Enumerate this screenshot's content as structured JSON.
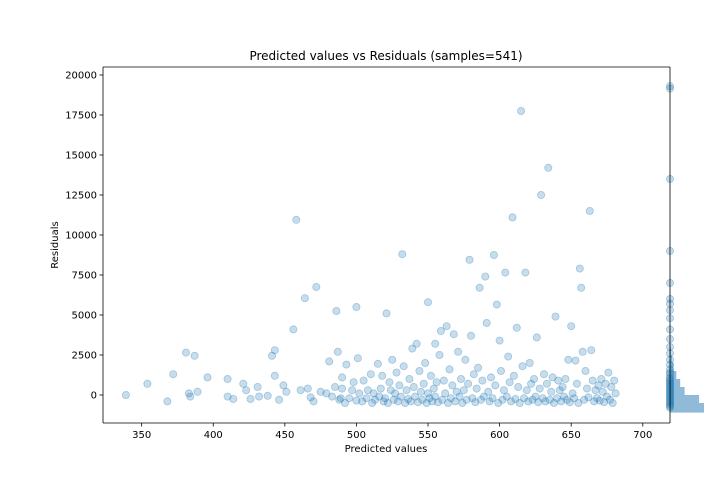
{
  "chart_data": {
    "type": "scatter",
    "title": "Predicted values vs Residuals (samples=541)",
    "xlabel": "Predicted values",
    "ylabel": "Residuals",
    "xlim": [
      323,
      719
    ],
    "ylim": [
      -1750,
      20500
    ],
    "x_ticks": [
      350,
      400,
      450,
      500,
      550,
      600,
      650,
      700
    ],
    "y_ticks": [
      0,
      2500,
      5000,
      7500,
      10000,
      12500,
      15000,
      17500,
      20000
    ],
    "point_color": "#1f77b4",
    "point_alpha": 0.25,
    "grid": false,
    "marginal_histogram": {
      "orientation": "horizontal",
      "side": "right",
      "color": "#1f77b4",
      "bins": [
        {
          "y0": -1100,
          "y1": -500,
          "count": 70
        },
        {
          "y0": -500,
          "y1": 0,
          "count": 60
        },
        {
          "y0": 0,
          "y1": 500,
          "count": 30
        },
        {
          "y0": 500,
          "y1": 1000,
          "count": 21
        },
        {
          "y0": 1000,
          "y1": 1500,
          "count": 13
        },
        {
          "y0": 1500,
          "y1": 2000,
          "count": 7
        },
        {
          "y0": 2000,
          "y1": 2500,
          "count": 4
        },
        {
          "y0": 2500,
          "y1": 3000,
          "count": 2
        }
      ]
    },
    "series": [
      {
        "points": [
          [
            339,
            0
          ],
          [
            354,
            700
          ],
          [
            368,
            -400
          ],
          [
            372,
            1300
          ],
          [
            381,
            2650
          ],
          [
            383,
            100
          ],
          [
            384,
            -100
          ],
          [
            387,
            2450
          ],
          [
            389,
            200
          ],
          [
            396,
            1100
          ],
          [
            410,
            1000
          ],
          [
            410,
            -100
          ],
          [
            414,
            -250
          ],
          [
            421,
            700
          ],
          [
            423,
            300
          ],
          [
            426,
            -250
          ],
          [
            431,
            500
          ],
          [
            432,
            -100
          ],
          [
            438,
            -50
          ],
          [
            441,
            2450
          ],
          [
            443,
            2800
          ],
          [
            443,
            1200
          ],
          [
            446,
            -300
          ],
          [
            449,
            600
          ],
          [
            451,
            200
          ],
          [
            456,
            4100
          ],
          [
            458,
            10950
          ],
          [
            461,
            300
          ],
          [
            464,
            6050
          ],
          [
            466,
            400
          ],
          [
            468,
            -150
          ],
          [
            470,
            -400
          ],
          [
            472,
            6750
          ],
          [
            475,
            200
          ],
          [
            479,
            100
          ],
          [
            481,
            2100
          ],
          [
            483,
            -100
          ],
          [
            485,
            500
          ],
          [
            486,
            5250
          ],
          [
            487,
            2700
          ],
          [
            488,
            -300
          ],
          [
            489,
            -200
          ],
          [
            490,
            1100
          ],
          [
            490,
            400
          ],
          [
            492,
            -500
          ],
          [
            493,
            1900
          ],
          [
            495,
            -200
          ],
          [
            497,
            300
          ],
          [
            498,
            800
          ],
          [
            500,
            5500
          ],
          [
            500,
            -350
          ],
          [
            501,
            2300
          ],
          [
            502,
            100
          ],
          [
            504,
            -400
          ],
          [
            505,
            900
          ],
          [
            507,
            -200
          ],
          [
            508,
            300
          ],
          [
            510,
            1300
          ],
          [
            511,
            -500
          ],
          [
            512,
            100
          ],
          [
            513,
            -300
          ],
          [
            515,
            1950
          ],
          [
            516,
            -100
          ],
          [
            517,
            400
          ],
          [
            518,
            1200
          ],
          [
            519,
            -400
          ],
          [
            520,
            -200
          ],
          [
            521,
            5100
          ],
          [
            522,
            -500
          ],
          [
            523,
            800
          ],
          [
            524,
            300
          ],
          [
            525,
            2200
          ],
          [
            526,
            -300
          ],
          [
            527,
            100
          ],
          [
            528,
            1400
          ],
          [
            529,
            -400
          ],
          [
            530,
            600
          ],
          [
            531,
            -100
          ],
          [
            532,
            8800
          ],
          [
            533,
            1800
          ],
          [
            534,
            -500
          ],
          [
            535,
            300
          ],
          [
            536,
            -250
          ],
          [
            537,
            1000
          ],
          [
            538,
            -400
          ],
          [
            539,
            2900
          ],
          [
            540,
            500
          ],
          [
            541,
            -100
          ],
          [
            542,
            3200
          ],
          [
            543,
            -450
          ],
          [
            544,
            1500
          ],
          [
            545,
            200
          ],
          [
            546,
            -300
          ],
          [
            547,
            700
          ],
          [
            548,
            2000
          ],
          [
            549,
            -500
          ],
          [
            550,
            5800
          ],
          [
            550,
            100
          ],
          [
            551,
            -200
          ],
          [
            552,
            1200
          ],
          [
            553,
            -400
          ],
          [
            554,
            400
          ],
          [
            555,
            3200
          ],
          [
            555,
            -100
          ],
          [
            556,
            800
          ],
          [
            557,
            -450
          ],
          [
            558,
            2500
          ],
          [
            559,
            4000
          ],
          [
            560,
            -300
          ],
          [
            561,
            900
          ],
          [
            562,
            100
          ],
          [
            563,
            4300
          ],
          [
            564,
            -500
          ],
          [
            565,
            1600
          ],
          [
            566,
            -200
          ],
          [
            567,
            600
          ],
          [
            568,
            3800
          ],
          [
            569,
            -400
          ],
          [
            570,
            200
          ],
          [
            571,
            2700
          ],
          [
            572,
            -100
          ],
          [
            573,
            1000
          ],
          [
            574,
            -500
          ],
          [
            575,
            300
          ],
          [
            576,
            2200
          ],
          [
            577,
            -300
          ],
          [
            578,
            700
          ],
          [
            579,
            8450
          ],
          [
            580,
            3700
          ],
          [
            581,
            -200
          ],
          [
            582,
            1300
          ],
          [
            583,
            -450
          ],
          [
            584,
            400
          ],
          [
            585,
            1700
          ],
          [
            586,
            6700
          ],
          [
            587,
            -300
          ],
          [
            588,
            900
          ],
          [
            589,
            -100
          ],
          [
            590,
            7400
          ],
          [
            591,
            4500
          ],
          [
            592,
            200
          ],
          [
            593,
            -400
          ],
          [
            594,
            1100
          ],
          [
            595,
            -200
          ],
          [
            596,
            8750
          ],
          [
            597,
            600
          ],
          [
            598,
            5650
          ],
          [
            599,
            -500
          ],
          [
            600,
            3400
          ],
          [
            601,
            1500
          ],
          [
            602,
            -300
          ],
          [
            603,
            300
          ],
          [
            604,
            7650
          ],
          [
            605,
            -100
          ],
          [
            606,
            2400
          ],
          [
            607,
            800
          ],
          [
            608,
            -400
          ],
          [
            609,
            11100
          ],
          [
            610,
            1200
          ],
          [
            611,
            -250
          ],
          [
            612,
            4200
          ],
          [
            613,
            500
          ],
          [
            614,
            -500
          ],
          [
            615,
            17750
          ],
          [
            616,
            1800
          ],
          [
            617,
            -200
          ],
          [
            618,
            7650
          ],
          [
            619,
            300
          ],
          [
            620,
            -400
          ],
          [
            621,
            2000
          ],
          [
            622,
            700
          ],
          [
            623,
            -300
          ],
          [
            624,
            1000
          ],
          [
            625,
            -100
          ],
          [
            626,
            3600
          ],
          [
            627,
            -450
          ],
          [
            628,
            400
          ],
          [
            629,
            12500
          ],
          [
            630,
            -200
          ],
          [
            631,
            1300
          ],
          [
            632,
            -400
          ],
          [
            633,
            700
          ],
          [
            634,
            14200
          ],
          [
            635,
            -300
          ],
          [
            636,
            200
          ],
          [
            637,
            1100
          ],
          [
            638,
            -500
          ],
          [
            639,
            4900
          ],
          [
            640,
            -200
          ],
          [
            641,
            900
          ],
          [
            642,
            300
          ],
          [
            643,
            -400
          ],
          [
            644,
            500
          ],
          [
            645,
            -100
          ],
          [
            646,
            1000
          ],
          [
            647,
            -300
          ],
          [
            648,
            2200
          ],
          [
            649,
            -450
          ],
          [
            650,
            4300
          ],
          [
            651,
            100
          ],
          [
            652,
            -200
          ],
          [
            653,
            2150
          ],
          [
            654,
            700
          ],
          [
            655,
            -500
          ],
          [
            656,
            7900
          ],
          [
            657,
            6700
          ],
          [
            658,
            2700
          ],
          [
            659,
            -300
          ],
          [
            660,
            1500
          ],
          [
            661,
            400
          ],
          [
            662,
            -150
          ],
          [
            663,
            11500
          ],
          [
            664,
            2800
          ],
          [
            665,
            900
          ],
          [
            666,
            -400
          ],
          [
            667,
            300
          ],
          [
            668,
            -200
          ],
          [
            669,
            600
          ],
          [
            670,
            -350
          ],
          [
            671,
            1000
          ],
          [
            672,
            200
          ],
          [
            673,
            -450
          ],
          [
            674,
            700
          ],
          [
            675,
            -100
          ],
          [
            676,
            1400
          ],
          [
            677,
            -300
          ],
          [
            678,
            500
          ],
          [
            679,
            -500
          ],
          [
            680,
            900
          ],
          [
            681,
            100
          ],
          [
            719,
            19300
          ],
          [
            719,
            19150
          ],
          [
            719,
            13500
          ],
          [
            719,
            9000
          ],
          [
            719,
            7000
          ],
          [
            719,
            6000
          ],
          [
            719,
            5700
          ],
          [
            719,
            5300
          ],
          [
            719,
            4800
          ],
          [
            719,
            4100
          ],
          [
            719,
            3500
          ],
          [
            719,
            3000
          ],
          [
            719,
            2600
          ],
          [
            719,
            2200
          ],
          [
            719,
            1900
          ],
          [
            719,
            1600
          ],
          [
            719,
            1400
          ],
          [
            719,
            1300
          ],
          [
            719,
            1100
          ],
          [
            719,
            1000
          ],
          [
            719,
            900
          ],
          [
            719,
            800
          ],
          [
            719,
            700
          ],
          [
            719,
            600
          ],
          [
            719,
            500
          ],
          [
            719,
            400
          ],
          [
            719,
            300
          ],
          [
            719,
            200
          ],
          [
            719,
            100
          ],
          [
            719,
            0
          ],
          [
            719,
            -100
          ],
          [
            719,
            -200
          ],
          [
            719,
            -300
          ],
          [
            719,
            -400
          ],
          [
            719,
            -500
          ],
          [
            719,
            -600
          ],
          [
            719,
            -700
          ],
          [
            719,
            -800
          ]
        ]
      }
    ]
  }
}
